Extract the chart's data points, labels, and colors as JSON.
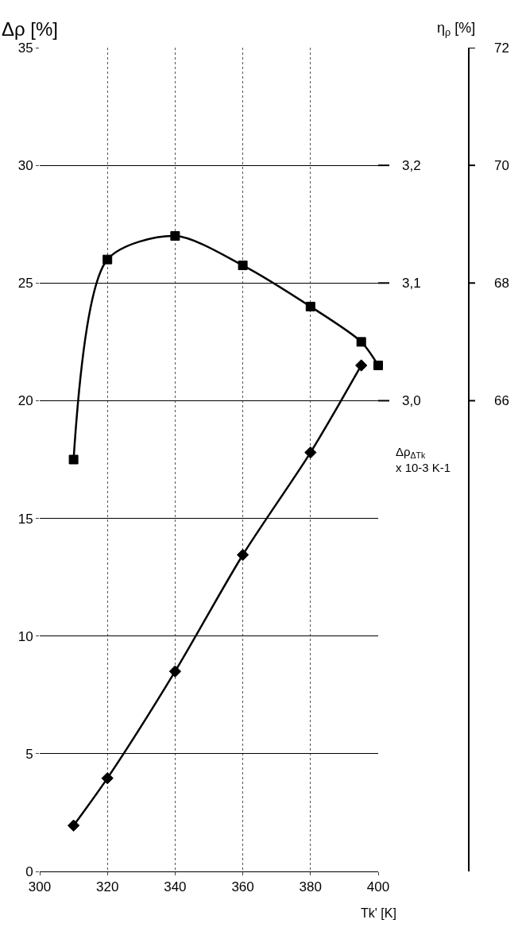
{
  "chart_data": {
    "type": "line",
    "ylabel": "Δρ [%]",
    "xlabel": "Tk' [K]",
    "y2label": "Δρ$_{ΔTk}$ x 10-3 K-1",
    "y3label": "η$_{ρ}$ [%]",
    "x": [
      310,
      320,
      340,
      360,
      380,
      395,
      400
    ],
    "series": [
      {
        "color": "#000000",
        "marker": "square",
        "values": [
          17.5,
          26.0,
          27.0,
          25.75,
          24.0,
          22.5,
          21.5
        ]
      },
      {
        "color": "#000000",
        "marker": "diamond",
        "values": [
          1.95,
          3.96,
          8.5,
          13.45,
          17.8,
          21.5,
          null
        ]
      }
    ],
    "xlim": [
      300,
      400
    ],
    "xticks": [
      300,
      320,
      340,
      360,
      380,
      400
    ],
    "ylim": [
      0,
      35
    ],
    "yticks": [
      0,
      5,
      10,
      15,
      20,
      25,
      30,
      35
    ],
    "y2lim": [
      2.6,
      3.3
    ],
    "y2ticks": [
      {
        "value": 3.0,
        "label": "3,0"
      },
      {
        "value": 3.1,
        "label": "3,1"
      },
      {
        "value": 3.2,
        "label": "3,2"
      }
    ],
    "y3lim": [
      58,
      72
    ],
    "y3ticks": [
      66,
      68,
      70,
      72
    ],
    "grid": true
  }
}
